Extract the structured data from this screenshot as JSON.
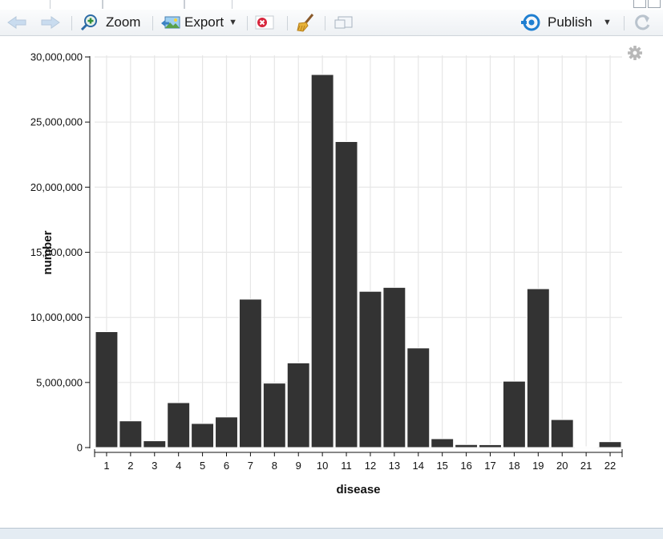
{
  "toolbar": {
    "zoom_label": "Zoom",
    "export_label": "Export",
    "publish_label": "Publish"
  },
  "icons": {
    "back": "back-arrow-icon",
    "forward": "forward-arrow-icon",
    "zoom": "zoom-magnifier-icon",
    "export": "export-image-icon",
    "remove": "remove-plot-icon",
    "clear": "broom-icon",
    "popout": "popout-window-icon",
    "publish": "publish-icon",
    "refresh": "refresh-icon",
    "settings": "gear-icon"
  },
  "colors": {
    "bar_fill": "#333333",
    "grid": "#e6e6e6",
    "publish_blue": "#1f7fd1",
    "remove_red": "#d7263d"
  },
  "chart_data": {
    "type": "bar",
    "xlabel": "disease",
    "ylabel": "number",
    "categories": [
      "1",
      "2",
      "3",
      "4",
      "5",
      "6",
      "7",
      "8",
      "9",
      "10",
      "11",
      "12",
      "13",
      "14",
      "15",
      "16",
      "17",
      "18",
      "19",
      "20",
      "21",
      "22"
    ],
    "values": [
      8900000,
      2050000,
      520000,
      3450000,
      1850000,
      2350000,
      11400000,
      4950000,
      6500000,
      28650000,
      23500000,
      12000000,
      12300000,
      7650000,
      680000,
      230000,
      220000,
      5100000,
      12200000,
      2150000,
      60000,
      450000
    ],
    "yticks": [
      0,
      5000000,
      10000000,
      15000000,
      20000000,
      25000000,
      30000000
    ],
    "ytick_labels": [
      "0",
      "5,000,000",
      "10,000,000",
      "15,000,000",
      "20,000,000",
      "25,000,000",
      "30,000,000"
    ],
    "ylim": [
      0,
      30000000
    ],
    "grid": true
  }
}
